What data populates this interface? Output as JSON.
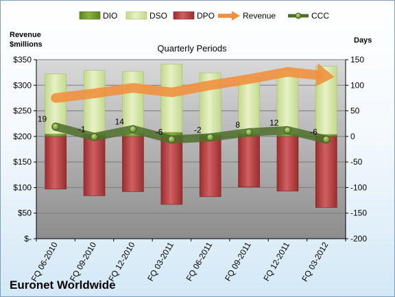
{
  "chart_data": {
    "type": "bar",
    "title": "Quarterly Periods",
    "company": "Euronet Worldwide",
    "left_axis_label": "Revenue\n$millions",
    "right_axis_label": "Days",
    "categories": [
      "FQ 06-2010",
      "FQ 09-2010",
      "FQ 12-2010",
      "FQ 03-2011",
      "FQ 06-2011",
      "FQ 09-2011",
      "FQ 12-2011",
      "FQ 03-2012"
    ],
    "series": [
      {
        "name": "DIO",
        "values": [
          5,
          5,
          5,
          8,
          4,
          5,
          4,
          4
        ]
      },
      {
        "name": "DSO",
        "values": [
          117,
          124,
          122,
          133,
          120,
          110,
          126,
          133
        ]
      },
      {
        "name": "DPO",
        "values": [
          -103,
          -116,
          -108,
          -133,
          -118,
          -99,
          -107,
          -139
        ]
      },
      {
        "name": "Revenue",
        "values": [
          275,
          284,
          295,
          286,
          300,
          312,
          326,
          318
        ]
      },
      {
        "name": "CCC",
        "values": [
          19,
          -1,
          14,
          -6,
          -2,
          8,
          12,
          -6
        ]
      }
    ],
    "ccc_labels": [
      "19",
      "-1",
      "14",
      "-6",
      "-2",
      "8",
      "12",
      "-6"
    ],
    "left_axis": {
      "min": 0,
      "max": 350,
      "step": 50,
      "labels": [
        "$-",
        "$50",
        "$100",
        "$150",
        "$200",
        "$250",
        "$300",
        "$350"
      ]
    },
    "right_axis": {
      "min": -200,
      "max": 150,
      "step": 50,
      "labels": [
        "-200",
        "-150",
        "-100",
        "-50",
        "0",
        "50",
        "100",
        "150"
      ]
    },
    "colors": {
      "DIO": "#6f9a2b",
      "DSO": "#d7e8a5",
      "DPO": "#b4393a",
      "Revenue": "#f0913f",
      "CCC": "#4e6f2c"
    },
    "legend": "top"
  }
}
